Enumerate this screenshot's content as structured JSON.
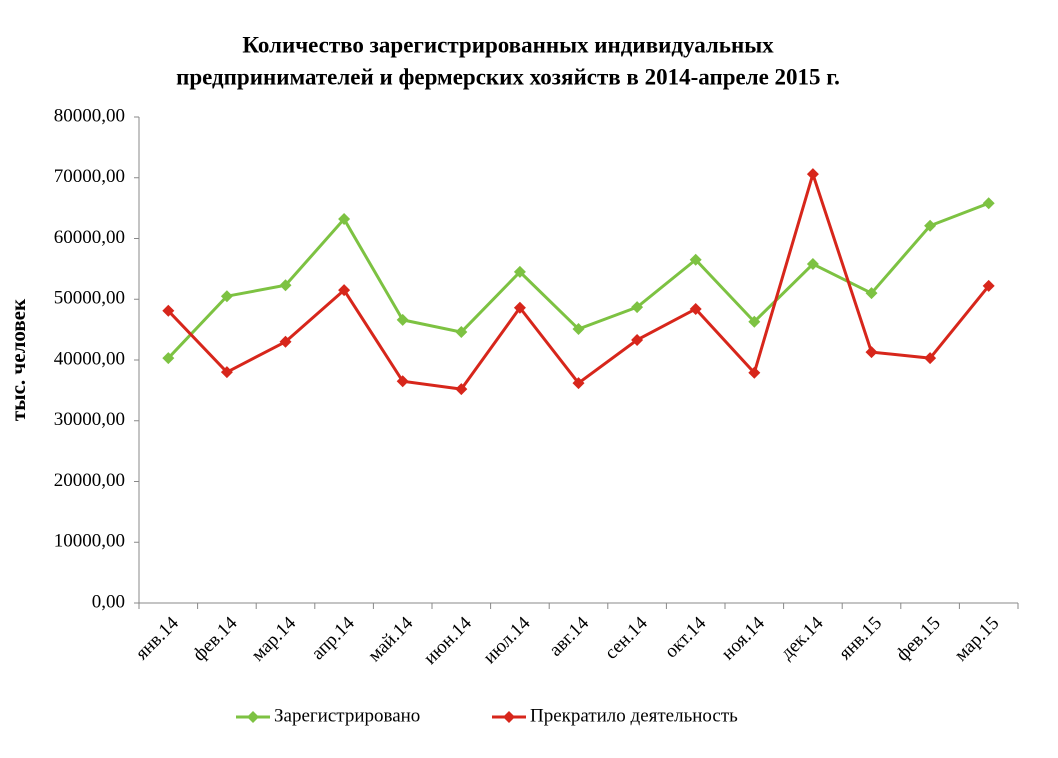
{
  "chart_data": {
    "type": "line",
    "title": [
      "Количество зарегистрированных индивидуальных",
      "предпринимателей и фермерских хозяйств в 2014-апреле 2015 г."
    ],
    "y_label": "тыс. человек",
    "categories": [
      "янв.14",
      "фев.14",
      "мар.14",
      "апр.14",
      "май.14",
      "июн.14",
      "июл.14",
      "авг.14",
      "сен.14",
      "окт.14",
      "ноя.14",
      "дек.14",
      "янв.15",
      "фев.15",
      "мар.15"
    ],
    "series": [
      {
        "name": "Зарегистрировано",
        "color": "#7dc242",
        "values": [
          40300,
          50500,
          52300,
          63200,
          46600,
          44600,
          54500,
          45100,
          48700,
          56500,
          46300,
          55800,
          51000,
          62100,
          65800
        ]
      },
      {
        "name": "Прекратило деятельность",
        "color": "#d7261b",
        "values": [
          48100,
          38000,
          43000,
          51500,
          36500,
          35200,
          48600,
          36200,
          43300,
          48400,
          37900,
          70600,
          41300,
          40300,
          52200
        ]
      }
    ],
    "ylim": [
      0,
      80000
    ],
    "yticks": [
      {
        "value": 0,
        "label": "0,00"
      },
      {
        "value": 10000,
        "label": "10000,00"
      },
      {
        "value": 20000,
        "label": "20000,00"
      },
      {
        "value": 30000,
        "label": "30000,00"
      },
      {
        "value": 40000,
        "label": "40000,00"
      },
      {
        "value": 50000,
        "label": "50000,00"
      },
      {
        "value": 60000,
        "label": "60000,00"
      },
      {
        "value": 70000,
        "label": "70000,00"
      },
      {
        "value": 80000,
        "label": "80000,00"
      }
    ],
    "grid": false,
    "legend": "bottom"
  }
}
